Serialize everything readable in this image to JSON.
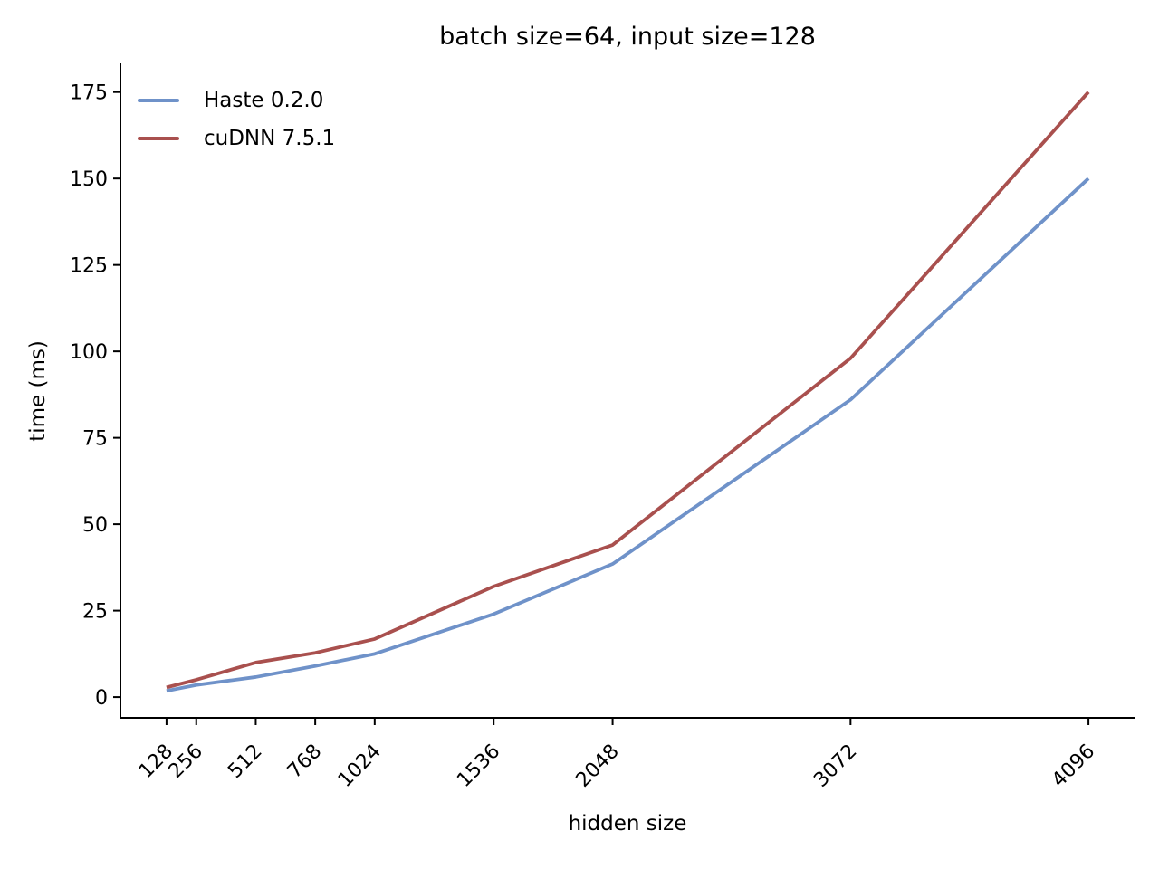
{
  "figure": {
    "background": "#ffffff",
    "text_color": "#000000",
    "axis_color": "#000000"
  },
  "chart_data": {
    "type": "line",
    "title": "batch size=64, input size=128",
    "xlabel": "hidden size",
    "ylabel": "time (ms)",
    "x": [
      128,
      256,
      512,
      768,
      1024,
      1536,
      2048,
      3072,
      4096
    ],
    "xtick_labels": [
      "128",
      "256",
      "512",
      "768",
      "1024",
      "1536",
      "2048",
      "3072",
      "4096"
    ],
    "yticks": [
      0,
      25,
      50,
      75,
      100,
      125,
      150,
      175
    ],
    "xlim": [
      -70.4,
      4294.4
    ],
    "ylim": [
      -6.0,
      183.3
    ],
    "grid": false,
    "legend_position": "upper-left",
    "xtick_rotation": 45,
    "series": [
      {
        "name": "Haste 0.2.0",
        "color": "#6f92c9",
        "values": [
          1.8,
          3.5,
          5.8,
          9.0,
          12.5,
          24.0,
          38.5,
          86.0,
          150.0
        ]
      },
      {
        "name": "cuDNN 7.5.1",
        "color": "#a9504e",
        "values": [
          2.8,
          5.0,
          10.0,
          12.8,
          16.8,
          32.0,
          44.0,
          98.0,
          175.0
        ]
      }
    ]
  }
}
